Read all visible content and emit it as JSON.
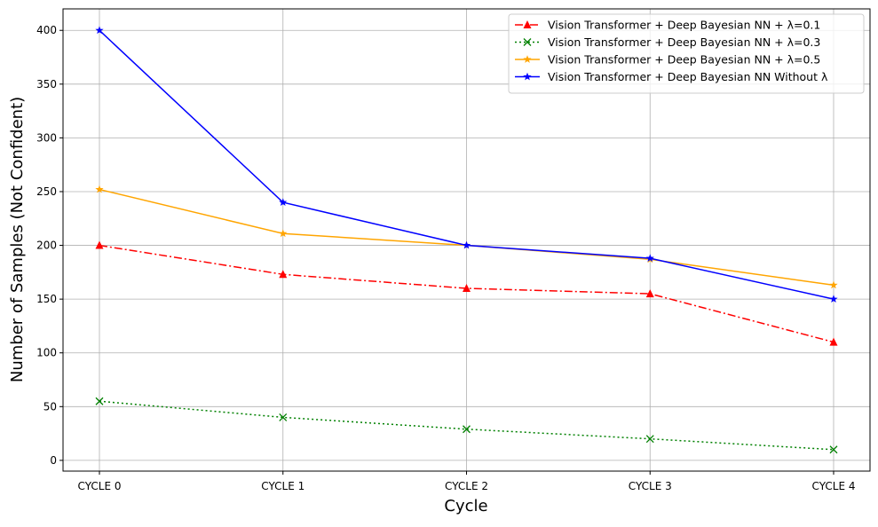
{
  "chart_data": {
    "type": "line",
    "title": "",
    "xlabel": "Cycle",
    "ylabel": "Number of Samples (Not Confident)",
    "categories": [
      "CYCLE 0",
      "CYCLE 1",
      "CYCLE 2",
      "CYCLE 3",
      "CYCLE 4"
    ],
    "ylim": [
      -10,
      420
    ],
    "yticks": [
      0,
      50,
      100,
      150,
      200,
      250,
      300,
      350,
      400
    ],
    "grid": true,
    "legend_position": "top-right",
    "series": [
      {
        "name": "Vision Transformer + Deep Bayesian NN + λ=0.1",
        "values": [
          200,
          173,
          160,
          155,
          110
        ],
        "color": "#ff0000",
        "dash": "dashdot",
        "marker": "triangle"
      },
      {
        "name": "Vision Transformer + Deep Bayesian NN + λ=0.3",
        "values": [
          55,
          40,
          29,
          20,
          10
        ],
        "color": "#008000",
        "dash": "dotted",
        "marker": "x"
      },
      {
        "name": "Vision Transformer + Deep Bayesian NN + λ=0.5",
        "values": [
          252,
          211,
          200,
          187,
          163
        ],
        "color": "#ffa500",
        "dash": "solid",
        "marker": "star"
      },
      {
        "name": "Vision Transformer + Deep Bayesian NN Without λ",
        "values": [
          400,
          240,
          200,
          188,
          150
        ],
        "color": "#0000ff",
        "dash": "solid",
        "marker": "star"
      }
    ]
  }
}
